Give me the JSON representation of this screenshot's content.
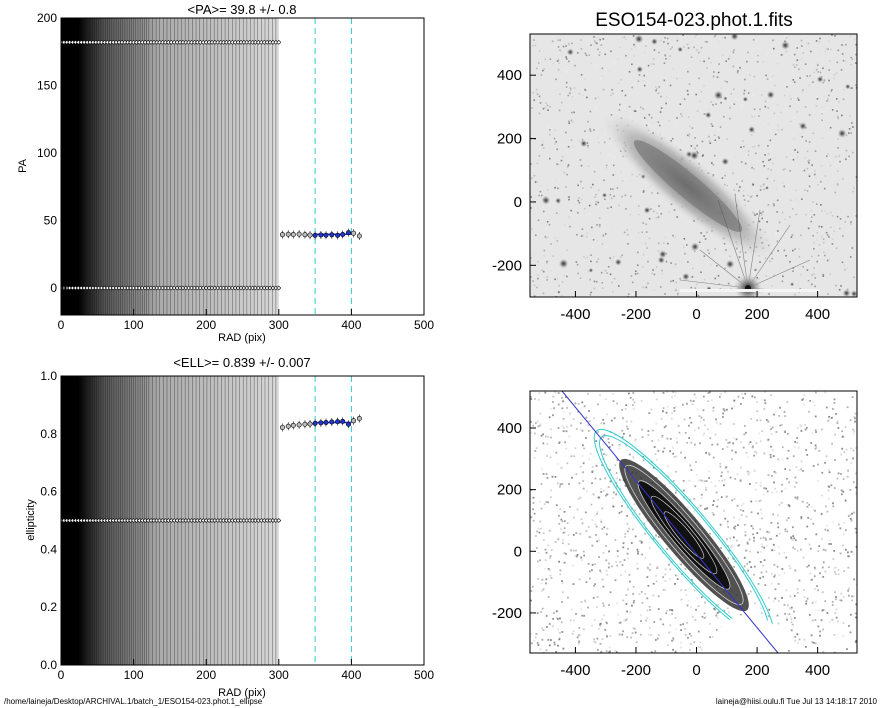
{
  "chart_data": [
    {
      "type": "scatter",
      "title": "<PA>=  39.8 +/-   0.8",
      "xlabel": "RAD (pix)",
      "ylabel": "PA",
      "xlim": [
        0,
        500
      ],
      "ylim": [
        -20,
        200
      ],
      "x_ticks": [
        0,
        100,
        200,
        300,
        400,
        500
      ],
      "y_ticks": [
        0,
        50,
        100,
        150,
        200
      ],
      "vlines": [
        350,
        400
      ],
      "fit_range": [
        350,
        400
      ],
      "series": [
        {
          "values_x": [
            305,
            313,
            320,
            328,
            336,
            343,
            350,
            358,
            365,
            373,
            381,
            388,
            396,
            403,
            411
          ],
          "values_y": [
            39.5,
            39.8,
            39.6,
            39.9,
            39.5,
            39.2,
            39.0,
            39.3,
            39.1,
            39.4,
            39.0,
            39.6,
            41.0,
            40.6,
            38.5
          ]
        },
        {
          "fill_x_range": [
            0,
            300
          ],
          "values_y": [
            0,
            182
          ]
        }
      ],
      "fit_value": 39.8
    },
    {
      "type": "scatter",
      "title": "<ELL>= 0.839 +/-  0.007",
      "xlabel": "RAD (pix)",
      "ylabel": "ellipticity",
      "xlim": [
        0,
        500
      ],
      "ylim": [
        0,
        1.0
      ],
      "x_ticks": [
        0,
        100,
        200,
        300,
        400,
        500
      ],
      "y_ticks": [
        "0.0",
        "0.2",
        "0.4",
        "0.6",
        "0.8",
        "1.0"
      ],
      "vlines": [
        350,
        400
      ],
      "fit_range": [
        350,
        400
      ],
      "series": [
        {
          "values_x": [
            305,
            313,
            320,
            328,
            336,
            343,
            350,
            358,
            365,
            373,
            381,
            388,
            396,
            403,
            411
          ],
          "values_y": [
            0.822,
            0.826,
            0.829,
            0.831,
            0.833,
            0.834,
            0.836,
            0.838,
            0.839,
            0.841,
            0.842,
            0.843,
            0.833,
            0.845,
            0.853
          ]
        },
        {
          "fill_x_range": [
            0,
            300
          ],
          "values_y": [
            0.5
          ]
        }
      ],
      "fit_value": 0.839
    },
    {
      "type": "heatmap",
      "title": "ESO154-023.phot.1.fits",
      "xlim": [
        -550,
        530
      ],
      "ylim": [
        -300,
        530
      ],
      "x_ticks": [
        -400,
        -200,
        0,
        200,
        400
      ],
      "y_ticks": [
        -200,
        0,
        200,
        400
      ]
    },
    {
      "type": "heatmap",
      "title": "",
      "xlim": [
        -550,
        530
      ],
      "ylim": [
        -330,
        520
      ],
      "x_ticks": [
        -400,
        -200,
        0,
        200,
        400
      ],
      "y_ticks": [
        -200,
        0,
        200,
        400
      ]
    }
  ],
  "footer": {
    "left": "/home/laineja/Desktop/ARCHIVAL.1/batch_1/ESO154-023.phot.1_ellipse",
    "right": "laineja@hiisi.oulu.fi  Tue Jul 13 14:18:17 2010"
  }
}
